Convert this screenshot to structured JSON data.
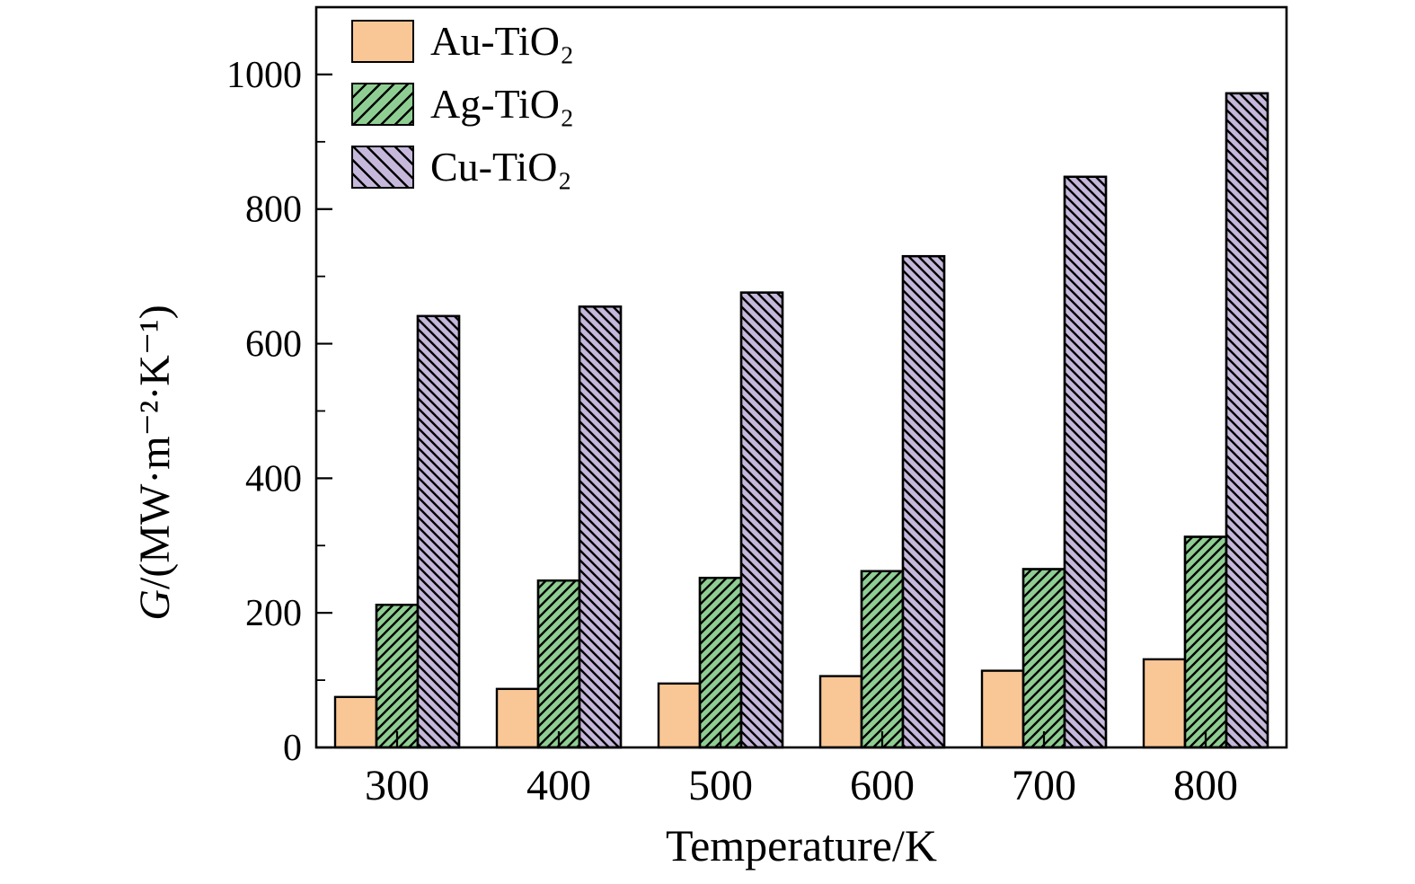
{
  "figure": {
    "background": "#FFFFFF",
    "axis_color": "#000000"
  },
  "chart_data": {
    "type": "bar",
    "title": "",
    "xlabel": "Temperature/K",
    "ylabel": "G/(MW·m⁻²·K⁻¹)",
    "ylabel_italic": "G",
    "ylabel_rest": "/(MW·m⁻²·K⁻¹)",
    "categories": [
      "300",
      "400",
      "500",
      "600",
      "700",
      "800"
    ],
    "yticks": [
      0,
      200,
      400,
      600,
      800,
      1000
    ],
    "y_minor_step": 100,
    "ylim": [
      0,
      1100
    ],
    "grid": false,
    "legend_position": "upper-left",
    "series": [
      {
        "key": "au-tio2",
        "name": "Au-TiO₂",
        "fill": "#F9C795",
        "hatch": "none",
        "values": [
          75,
          87,
          95,
          106,
          114,
          131
        ]
      },
      {
        "key": "ag-tio2",
        "name": "Ag-TiO₂",
        "fill": "#8FCE92",
        "hatch": "forward-diagonal",
        "values": [
          212,
          248,
          252,
          262,
          265,
          313
        ]
      },
      {
        "key": "cu-tio2",
        "name": "Cu-TiO₂",
        "fill": "#C5B8DB",
        "hatch": "backward-diagonal",
        "values": [
          641,
          655,
          676,
          730,
          848,
          972
        ]
      }
    ]
  }
}
